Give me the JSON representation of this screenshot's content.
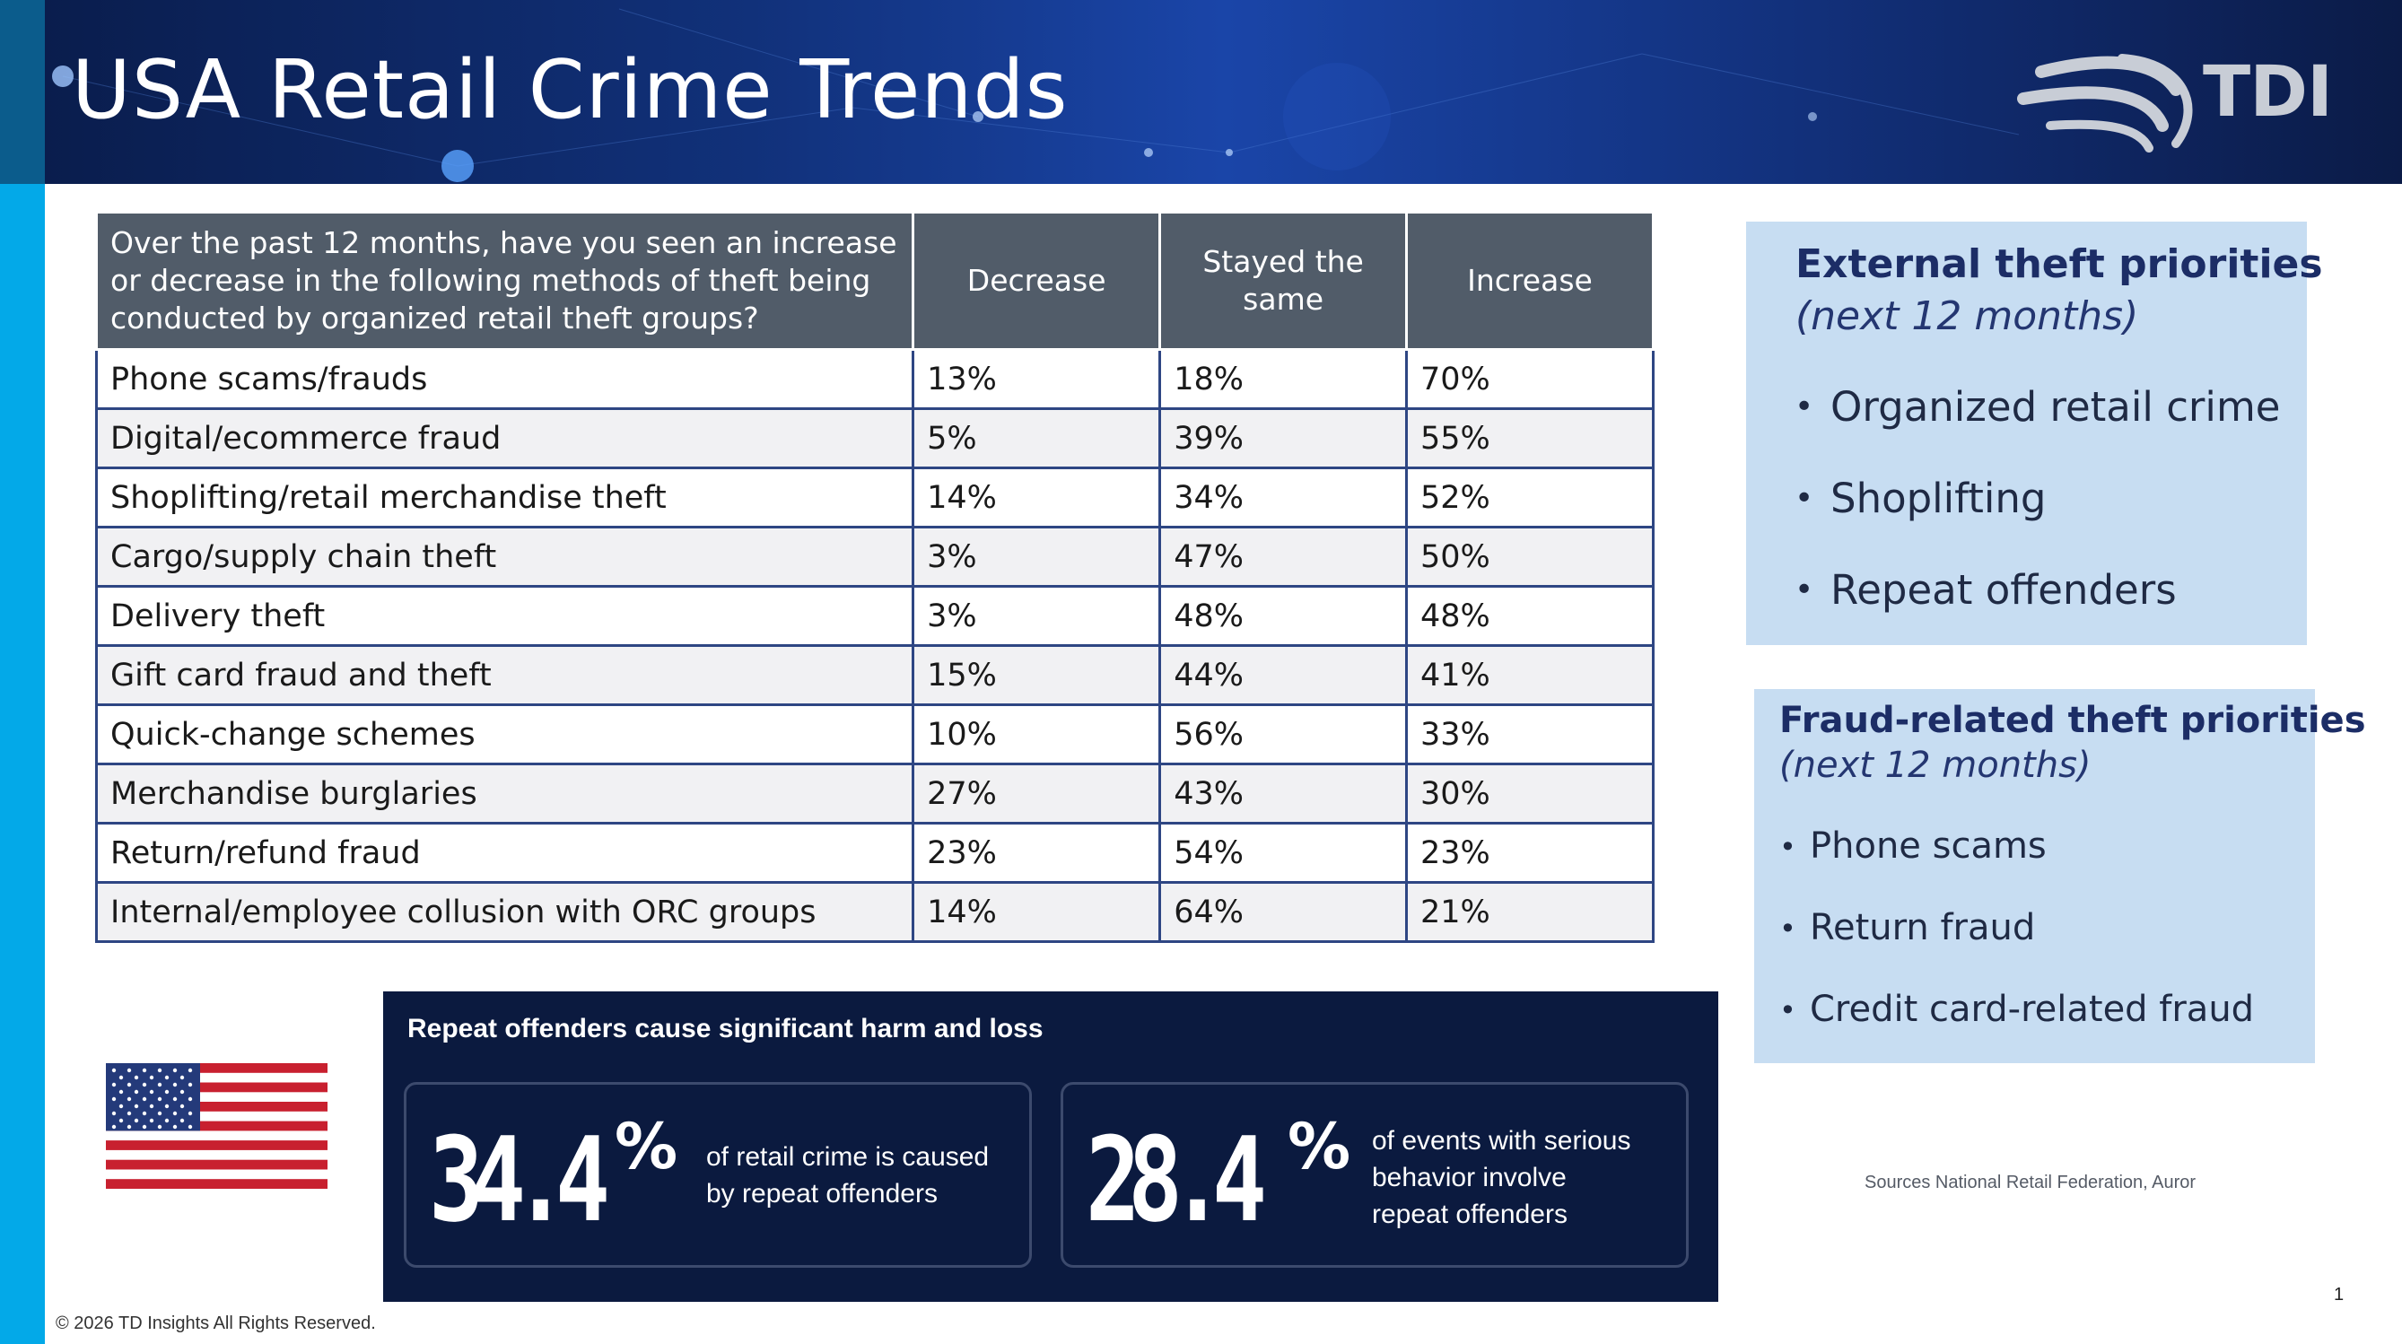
{
  "header": {
    "title": "USA Retail Crime Trends",
    "logo_text": "TDI"
  },
  "table": {
    "question": "Over the past 12 months, have you seen an increase or decrease in the following methods of theft being conducted by organized retail theft groups?",
    "columns": [
      "Decrease",
      "Stayed the same",
      "Increase"
    ],
    "rows": [
      {
        "label": "Phone scams/frauds",
        "decrease": "13%",
        "same": "18%",
        "increase": "70%"
      },
      {
        "label": "Digital/ecommerce fraud",
        "decrease": "5%",
        "same": "39%",
        "increase": "55%"
      },
      {
        "label": "Shoplifting/retail merchandise theft",
        "decrease": "14%",
        "same": "34%",
        "increase": "52%"
      },
      {
        "label": "Cargo/supply chain theft",
        "decrease": "3%",
        "same": "47%",
        "increase": "50%"
      },
      {
        "label": "Delivery theft",
        "decrease": "3%",
        "same": "48%",
        "increase": "48%"
      },
      {
        "label": "Gift card fraud and theft",
        "decrease": "15%",
        "same": "44%",
        "increase": "41%"
      },
      {
        "label": "Quick-change schemes",
        "decrease": "10%",
        "same": "56%",
        "increase": "33%"
      },
      {
        "label": "Merchandise burglaries",
        "decrease": "27%",
        "same": "43%",
        "increase": "30%"
      },
      {
        "label": "Return/refund fraud",
        "decrease": "23%",
        "same": "54%",
        "increase": "23%"
      },
      {
        "label": "Internal/employee collusion with ORC groups",
        "decrease": "14%",
        "same": "64%",
        "increase": "21%"
      }
    ]
  },
  "external_priorities": {
    "heading": "External theft priorities",
    "subheading": "(next 12 months)",
    "items": [
      "Organized retail crime",
      "Shoplifting",
      "Repeat offenders"
    ]
  },
  "fraud_priorities": {
    "heading": "Fraud-related theft priorities",
    "subheading": "(next 12 months)",
    "items": [
      "Phone scams",
      "Return fraud",
      "Credit card-related fraud"
    ]
  },
  "repeat_offenders": {
    "title": "Repeat offenders cause significant harm and loss",
    "stats": [
      {
        "value": "34.4",
        "unit": "%",
        "text_lines": [
          "of retail crime is caused",
          "by repeat offenders"
        ]
      },
      {
        "value": "28.4",
        "unit": "%",
        "text_lines": [
          "of events with serious",
          "behavior involve",
          "repeat offenders"
        ]
      }
    ]
  },
  "sources": "Sources National Retail Federation, Auror",
  "page_number": "1",
  "copyright": "© 2026 TD Insights All Rights Reserved.",
  "colors": {
    "header": "#11317a",
    "accent_stripe": "#03a9e8",
    "table_header": "#515c69",
    "panel": "#c7ddf2",
    "stats_bg": "#0b1a3f"
  }
}
